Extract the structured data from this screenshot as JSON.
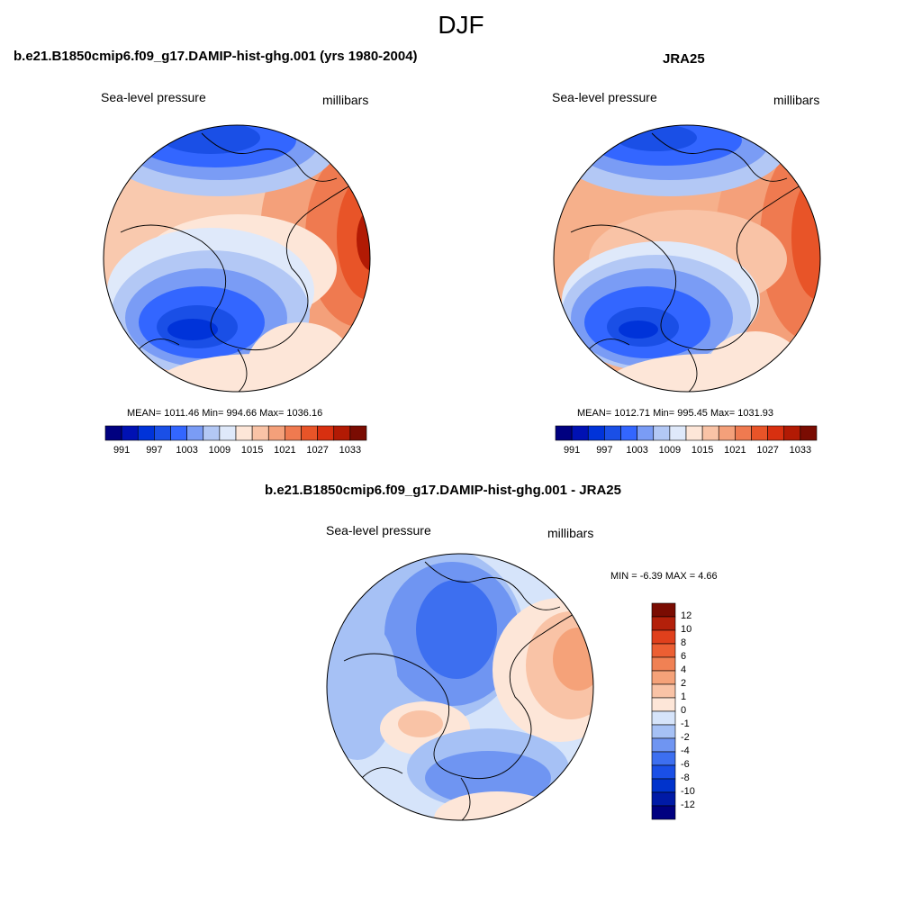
{
  "figure": {
    "title": "DJF"
  },
  "panel_model": {
    "title": "b.e21.B1850cmip6.f09_g17.DAMIP-hist-ghg.001 (yrs 1980-2004)",
    "variable": "Sea-level pressure",
    "units": "millibars",
    "stats": "MEAN= 1011.46  Min= 994.66  Max= 1036.16"
  },
  "panel_obs": {
    "title": "JRA25",
    "variable": "Sea-level pressure",
    "units": "millibars",
    "stats": "MEAN= 1012.71  Min= 995.45  Max= 1031.93"
  },
  "panel_diff": {
    "title": "b.e21.B1850cmip6.f09_g17.DAMIP-hist-ghg.001 - JRA25",
    "variable": "Sea-level pressure",
    "units": "millibars",
    "stats": "MIN =  -6.39 MAX =   4.66"
  },
  "colorbar_main": {
    "colors": [
      "#000080",
      "#0011b3",
      "#0033d9",
      "#1a4fe6",
      "#3366ff",
      "#7a9cf5",
      "#b3c8f5",
      "#dfe9fa",
      "#fde6d8",
      "#f9c3a6",
      "#f4a07a",
      "#ef7a50",
      "#e85428",
      "#d83010",
      "#b21a04",
      "#7a0c02"
    ],
    "labels": [
      "991",
      "997",
      "1003",
      "1009",
      "1015",
      "1021",
      "1027",
      "1033"
    ]
  },
  "colorbar_diff": {
    "colors": [
      "#000080",
      "#001aa6",
      "#0033cc",
      "#1a4fe6",
      "#3d6ff0",
      "#6f95f2",
      "#a6c1f5",
      "#d6e4fa",
      "#fde6d8",
      "#f9c3a6",
      "#f5a279",
      "#f08154",
      "#ec5f33",
      "#e0401c",
      "#b3200a",
      "#7a0c02"
    ],
    "labels": [
      "12",
      "10",
      "8",
      "6",
      "4",
      "2",
      "1",
      "0",
      "-1",
      "-2",
      "-4",
      "-6",
      "-8",
      "-10",
      "-12"
    ]
  },
  "colors": {
    "low": "#0b2fd0",
    "mid_low": "#6f95f2",
    "neutral": "#eef2fb",
    "mid_high": "#f6b08b",
    "high": "#d93a12",
    "extreme": "#8a1405"
  }
}
